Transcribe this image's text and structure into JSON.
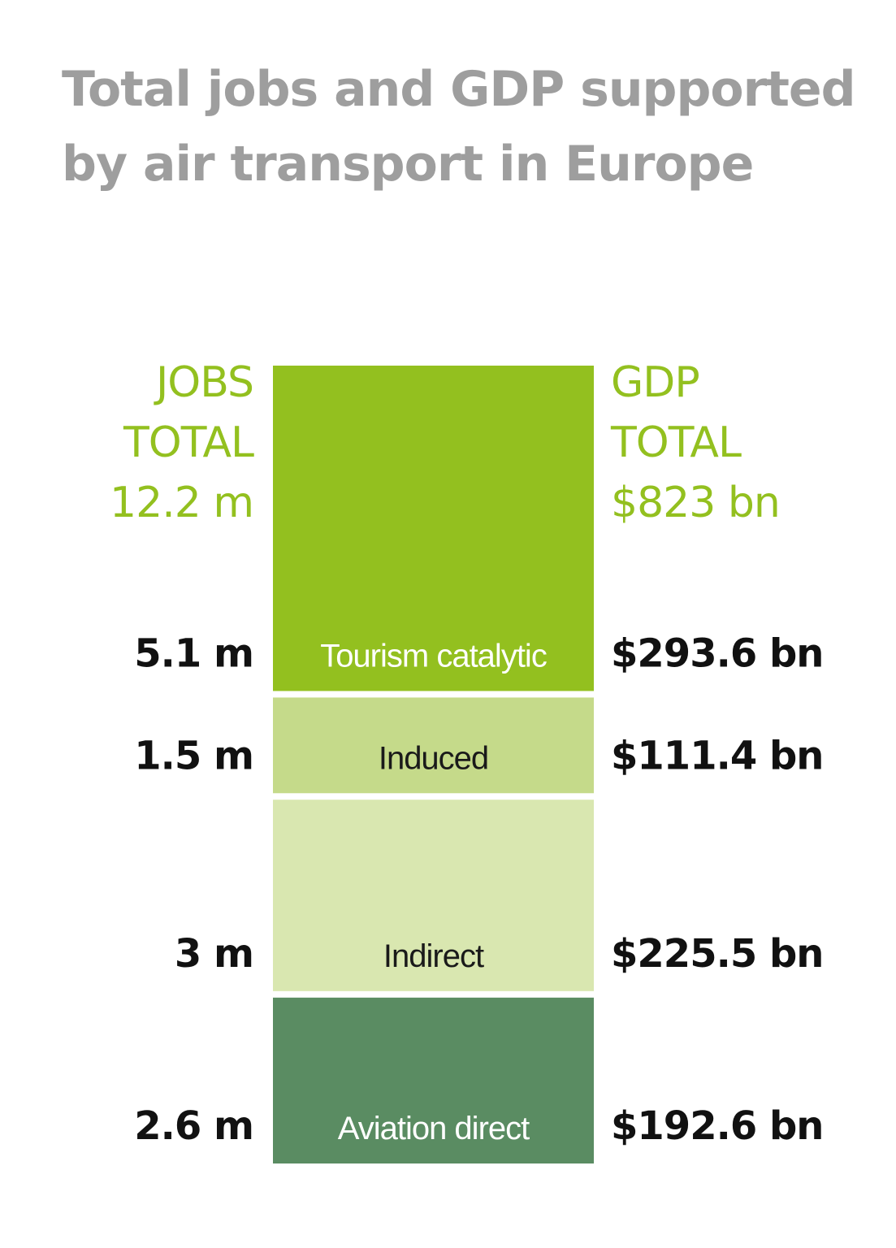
{
  "chart_data": {
    "type": "bar",
    "title": "Total jobs and GDP supported by air transport in Europe",
    "colors": {
      "title": "#9e9e9e",
      "totals": "#93c01f",
      "values": "#111111"
    },
    "jobs_total": {
      "line1": "JOBS",
      "line2": "TOTAL",
      "value": "12.2 m"
    },
    "gdp_total": {
      "line1": "GDP",
      "line2": "TOTAL",
      "value": "$823 bn"
    },
    "segments": [
      {
        "name": "Tourism catalytic",
        "jobs": 5.1,
        "jobs_label": "5.1 m",
        "gdp": 293.6,
        "gdp_label": "$293.6 bn",
        "color": "#93c01f",
        "text_color": "#ffffff"
      },
      {
        "name": "Induced",
        "jobs": 1.5,
        "jobs_label": "1.5 m",
        "gdp": 111.4,
        "gdp_label": "$111.4 bn",
        "color": "#c5da8a",
        "text_color": "#1a1a1a"
      },
      {
        "name": "Indirect",
        "jobs": 3,
        "jobs_label": "3 m",
        "gdp": 225.5,
        "gdp_label": "$225.5 bn",
        "color": "#d9e7b0",
        "text_color": "#1a1a1a"
      },
      {
        "name": "Aviation direct",
        "jobs": 2.6,
        "jobs_label": "2.6 m",
        "gdp": 192.6,
        "gdp_label": "$192.6 bn",
        "color": "#5a8c62",
        "text_color": "#ffffff"
      }
    ]
  }
}
